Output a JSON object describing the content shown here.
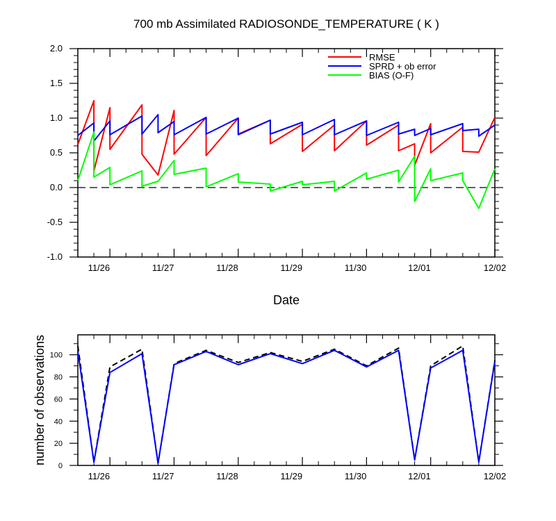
{
  "chart_data": [
    {
      "type": "line",
      "title": "700 mb Assimilated RADIOSONDE_TEMPERATURE ( K )",
      "xlabel": "Date",
      "ylabel": "",
      "xlim": [
        0,
        6.5
      ],
      "ylim": [
        -1.0,
        2.0
      ],
      "x_ticks": [
        0.5,
        1.5,
        2.5,
        3.5,
        4.5,
        5.5,
        6.5
      ],
      "x_tick_labels": [
        "11/26",
        "11/27",
        "11/28",
        "11/29",
        "11/30",
        "12/01",
        "12/02"
      ],
      "y_ticks": [
        -1.0,
        -0.5,
        0.0,
        0.5,
        1.0,
        1.5,
        2.0
      ],
      "y_tick_labels": [
        "-1.0",
        "-0.5",
        "0.0",
        "0.5",
        "1.0",
        "1.5",
        "2.0"
      ],
      "reference_line": {
        "y": 0,
        "style": "dashed"
      },
      "legend_position": "top-right",
      "series": [
        {
          "name": "RMSE",
          "color": "#ff0000",
          "points": [
            [
              0.0,
              0.62
            ],
            [
              0.25,
              1.25
            ],
            [
              0.25,
              0.24
            ],
            [
              0.5,
              1.15
            ],
            [
              0.5,
              0.55
            ],
            [
              1.0,
              1.19
            ],
            [
              1.0,
              0.48
            ],
            [
              1.25,
              0.18
            ],
            [
              1.5,
              1.11
            ],
            [
              1.5,
              0.48
            ],
            [
              2.0,
              1.01
            ],
            [
              2.0,
              0.46
            ],
            [
              2.5,
              1.0
            ],
            [
              2.5,
              0.77
            ],
            [
              3.0,
              0.97
            ],
            [
              3.0,
              0.63
            ],
            [
              3.5,
              0.91
            ],
            [
              3.5,
              0.52
            ],
            [
              4.0,
              0.9
            ],
            [
              4.0,
              0.53
            ],
            [
              4.5,
              0.96
            ],
            [
              4.5,
              0.61
            ],
            [
              5.0,
              0.9
            ],
            [
              5.0,
              0.53
            ],
            [
              5.25,
              0.63
            ],
            [
              5.25,
              0.32
            ],
            [
              5.5,
              0.92
            ],
            [
              5.5,
              0.5
            ],
            [
              6.0,
              0.87
            ],
            [
              6.0,
              0.52
            ],
            [
              6.25,
              0.51
            ],
            [
              6.5,
              1.01
            ]
          ]
        },
        {
          "name": "SPRD + ob error",
          "color": "#0000ff",
          "points": [
            [
              0.0,
              0.75
            ],
            [
              0.25,
              0.93
            ],
            [
              0.25,
              0.67
            ],
            [
              0.5,
              0.96
            ],
            [
              0.5,
              0.76
            ],
            [
              1.0,
              1.03
            ],
            [
              1.0,
              0.77
            ],
            [
              1.25,
              1.05
            ],
            [
              1.25,
              0.79
            ],
            [
              1.5,
              0.95
            ],
            [
              1.5,
              0.76
            ],
            [
              2.0,
              1.01
            ],
            [
              2.0,
              0.77
            ],
            [
              2.5,
              1.0
            ],
            [
              2.5,
              0.76
            ],
            [
              3.0,
              0.97
            ],
            [
              3.0,
              0.77
            ],
            [
              3.5,
              0.94
            ],
            [
              3.5,
              0.76
            ],
            [
              4.0,
              0.98
            ],
            [
              4.0,
              0.76
            ],
            [
              4.5,
              0.96
            ],
            [
              4.5,
              0.75
            ],
            [
              5.0,
              0.94
            ],
            [
              5.0,
              0.77
            ],
            [
              5.25,
              0.84
            ],
            [
              5.25,
              0.75
            ],
            [
              5.5,
              0.85
            ],
            [
              5.5,
              0.76
            ],
            [
              6.0,
              0.92
            ],
            [
              6.0,
              0.82
            ],
            [
              6.25,
              0.84
            ],
            [
              6.25,
              0.74
            ],
            [
              6.5,
              0.9
            ]
          ]
        },
        {
          "name": "BIAS (O-F)",
          "color": "#00ff00",
          "points": [
            [
              0.0,
              0.1
            ],
            [
              0.25,
              0.8
            ],
            [
              0.25,
              0.15
            ],
            [
              0.5,
              0.29
            ],
            [
              0.5,
              0.04
            ],
            [
              1.0,
              0.24
            ],
            [
              1.0,
              0.02
            ],
            [
              1.25,
              0.09
            ],
            [
              1.5,
              0.39
            ],
            [
              1.5,
              0.19
            ],
            [
              2.0,
              0.28
            ],
            [
              2.0,
              0.01
            ],
            [
              2.5,
              0.2
            ],
            [
              2.5,
              0.08
            ],
            [
              3.0,
              0.05
            ],
            [
              3.0,
              -0.05
            ],
            [
              3.5,
              0.09
            ],
            [
              3.5,
              0.04
            ],
            [
              4.0,
              0.09
            ],
            [
              4.0,
              -0.05
            ],
            [
              4.5,
              0.21
            ],
            [
              4.5,
              0.12
            ],
            [
              5.0,
              0.25
            ],
            [
              5.0,
              0.08
            ],
            [
              5.25,
              0.45
            ],
            [
              5.25,
              -0.2
            ],
            [
              5.5,
              0.27
            ],
            [
              5.5,
              0.1
            ],
            [
              6.0,
              0.21
            ],
            [
              6.0,
              0.1
            ],
            [
              6.25,
              -0.3
            ],
            [
              6.5,
              0.27
            ]
          ]
        }
      ]
    },
    {
      "type": "line",
      "title": "",
      "xlabel": "",
      "ylabel": "number of observations",
      "xlim": [
        0,
        6.5
      ],
      "ylim": [
        0,
        118
      ],
      "x_ticks": [
        0.5,
        1.5,
        2.5,
        3.5,
        4.5,
        5.5,
        6.5
      ],
      "x_tick_labels": [
        "11/26",
        "11/27",
        "11/28",
        "11/29",
        "11/30",
        "12/01",
        "12/02"
      ],
      "y_ticks": [
        0,
        20,
        40,
        60,
        80,
        100
      ],
      "y_tick_labels": [
        "0",
        "20",
        "40",
        "60",
        "80",
        "100"
      ],
      "series": [
        {
          "color": "#000000",
          "dashed": true,
          "points": [
            [
              0.0,
              108
            ],
            [
              0.25,
              3
            ],
            [
              0.5,
              89
            ],
            [
              1.0,
              105
            ],
            [
              1.25,
              2
            ],
            [
              1.5,
              92
            ],
            [
              2.0,
              104
            ],
            [
              2.5,
              93
            ],
            [
              3.0,
              102
            ],
            [
              3.5,
              94
            ],
            [
              4.0,
              105
            ],
            [
              4.5,
              90
            ],
            [
              5.0,
              106
            ],
            [
              5.25,
              5
            ],
            [
              5.5,
              90
            ],
            [
              6.0,
              108
            ],
            [
              6.25,
              3
            ],
            [
              6.5,
              95
            ]
          ]
        },
        {
          "color": "#0000ff",
          "dashed": false,
          "points": [
            [
              0.0,
              103
            ],
            [
              0.25,
              3
            ],
            [
              0.5,
              84
            ],
            [
              1.0,
              101
            ],
            [
              1.25,
              2
            ],
            [
              1.5,
              91
            ],
            [
              2.0,
              103
            ],
            [
              2.5,
              91
            ],
            [
              3.0,
              101
            ],
            [
              3.5,
              92
            ],
            [
              4.0,
              104
            ],
            [
              4.5,
              89
            ],
            [
              5.0,
              104
            ],
            [
              5.25,
              5
            ],
            [
              5.5,
              88
            ],
            [
              6.0,
              104
            ],
            [
              6.25,
              3
            ],
            [
              6.5,
              94
            ]
          ]
        }
      ]
    }
  ]
}
